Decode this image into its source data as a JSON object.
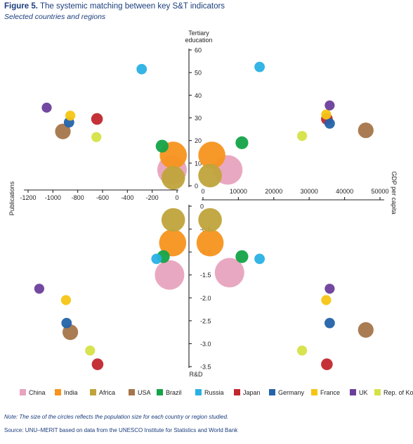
{
  "title_label": "Figure 5.",
  "title_text": "The systemic matching between key S&T indicators",
  "subtitle": "Selected countries and regions",
  "note": "Note: The size of the circles reflects the population size for each country or region studied.",
  "source": "Source: UNU–MERIT based on data from the UNESCO Institute for Statistics and World Bank",
  "chart_data": {
    "type": "scatter",
    "subtype": "quadrant-bubble",
    "axes": {
      "top": {
        "label_line1": "Tertiary",
        "label_line2": "education",
        "range": [
          0,
          60
        ],
        "ticks": [
          "0",
          "10",
          "20",
          "30",
          "40",
          "50",
          "60"
        ]
      },
      "bottom": {
        "label": "R&D",
        "range": [
          0,
          -3.5
        ],
        "ticks": [
          "0",
          "-0.5",
          "-1.0",
          "-1.5",
          "-2.0",
          "-2.5",
          "-3.0",
          "-3.5"
        ]
      },
      "left": {
        "label": "Publications",
        "range": [
          0,
          -1200
        ],
        "ticks": [
          "0",
          "-200",
          "-400",
          "-600",
          "-800",
          "-1000",
          "-1200"
        ]
      },
      "right": {
        "label": "GDP per capita",
        "range": [
          0,
          50000
        ],
        "ticks": [
          "0",
          "10000",
          "20000",
          "30000",
          "40000",
          "50000"
        ]
      }
    },
    "legend_position": "bottom",
    "series": [
      {
        "name": "China",
        "color": "#e8a3be",
        "size": 1.0,
        "top_left": [
          -40,
          7
        ],
        "top_right": [
          7000,
          7
        ],
        "bottom_left": [
          -60,
          -1.5
        ],
        "bottom_right": [
          7500,
          -1.45
        ]
      },
      {
        "name": "India",
        "color": "#f7941d",
        "size": 0.9,
        "top_left": [
          -30,
          13.5
        ],
        "top_right": [
          2500,
          13.5
        ],
        "bottom_left": [
          -35,
          -0.8
        ],
        "bottom_right": [
          2000,
          -0.8
        ]
      },
      {
        "name": "Africa",
        "color": "#c0a43b",
        "size": 0.75,
        "top_left": [
          -30,
          3.5
        ],
        "top_right": [
          2000,
          4.5
        ],
        "bottom_left": [
          -30,
          -0.3
        ],
        "bottom_right": [
          2000,
          -0.3
        ]
      },
      {
        "name": "USA",
        "color": "#a5754a",
        "size": 0.42,
        "top_left": [
          -920,
          24
        ],
        "top_right": [
          46000,
          24.5
        ],
        "bottom_left": [
          -860,
          -2.75
        ],
        "bottom_right": [
          46000,
          -2.7
        ]
      },
      {
        "name": "Brazil",
        "color": "#14a348",
        "size": 0.3,
        "top_left": [
          -120,
          17.5
        ],
        "top_right": [
          11000,
          19
        ],
        "bottom_left": [
          -110,
          -1.1
        ],
        "bottom_right": [
          11000,
          -1.1
        ]
      },
      {
        "name": "Russia",
        "color": "#29b1e4",
        "size": 0.2,
        "top_left": [
          -285,
          51.5
        ],
        "top_right": [
          16000,
          52.5
        ],
        "bottom_left": [
          -165,
          -1.15
        ],
        "bottom_right": [
          16000,
          -1.15
        ]
      },
      {
        "name": "Japan",
        "color": "#c1272d",
        "size": 0.25,
        "top_left": [
          -645,
          29.5
        ],
        "top_right": [
          35000,
          29.5
        ],
        "bottom_left": [
          -640,
          -3.45
        ],
        "bottom_right": [
          35000,
          -3.45
        ]
      },
      {
        "name": "Germany",
        "color": "#2363aa",
        "size": 0.2,
        "top_left": [
          -870,
          28
        ],
        "top_right": [
          35800,
          27.5
        ],
        "bottom_left": [
          -890,
          -2.55
        ],
        "bottom_right": [
          35800,
          -2.55
        ]
      },
      {
        "name": "France",
        "color": "#f6c514",
        "size": 0.18,
        "top_left": [
          -860,
          31
        ],
        "top_right": [
          34800,
          31.5
        ],
        "bottom_left": [
          -895,
          -2.05
        ],
        "bottom_right": [
          34800,
          -2.05
        ]
      },
      {
        "name": "UK",
        "color": "#6b3e9b",
        "size": 0.18,
        "top_left": [
          -1050,
          34.5
        ],
        "top_right": [
          35800,
          35.5
        ],
        "bottom_left": [
          -1110,
          -1.8
        ],
        "bottom_right": [
          35800,
          -1.8
        ]
      },
      {
        "name": "Rep. of Korea",
        "color": "#d5e246",
        "size": 0.18,
        "top_left": [
          -650,
          21.5
        ],
        "top_right": [
          28000,
          22
        ],
        "bottom_left": [
          -700,
          -3.15
        ],
        "bottom_right": [
          28000,
          -3.15
        ]
      }
    ]
  }
}
